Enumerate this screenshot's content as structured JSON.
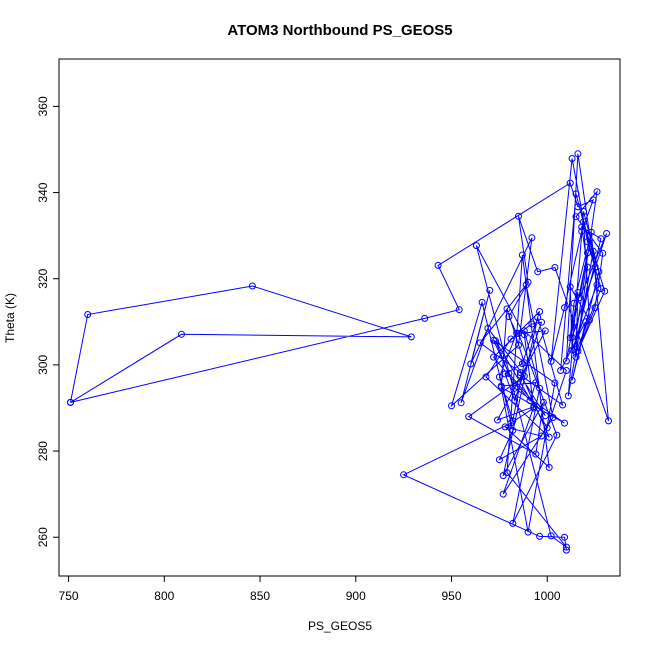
{
  "chart_data": {
    "type": "line",
    "title": "ATOM3 Northbound PS_GEOS5",
    "xlabel": "PS_GEOS5",
    "ylabel": "Theta (K)",
    "xlim": [
      745,
      1038
    ],
    "ylim": [
      251,
      371
    ],
    "xticks": [
      750,
      800,
      850,
      900,
      950,
      1000
    ],
    "yticks": [
      260,
      280,
      300,
      320,
      340,
      360
    ],
    "grid": false,
    "legend": "none",
    "color": "#0000ff",
    "marker": "open-circle",
    "series": [
      {
        "x": [
          751,
          760,
          846,
          929,
          809,
          751,
          936,
          954,
          943,
          1012,
          1016,
          1024,
          1018,
          1009,
          1002,
          1013,
          1021,
          1028,
          1015,
          1024,
          1011,
          1019,
          1027,
          1013,
          1020,
          1007,
          1015,
          1025,
          1013,
          1031,
          1017,
          1021,
          1010,
          1016,
          1026,
          1013,
          1012,
          1022,
          1019,
          1030,
          1016,
          1025,
          1029,
          1015,
          1026,
          1014,
          1028,
          1018,
          1021,
          1015,
          1016,
          1012,
          1014,
          1023,
          1032,
          1004,
          995,
          985,
          990,
          980,
          984,
          975,
          982,
          988,
          979,
          976,
          994,
          991,
          972,
          996,
          987,
          978,
          983,
          997,
          992,
          981,
          968,
          1001,
          986,
          965,
          989,
          1003,
          977,
          993,
          974,
          999,
          985,
          1005,
          982,
          996,
          988,
          1010,
          1000,
          973,
          983,
          1009,
          976,
          990,
          1004,
          972,
          980,
          999,
          986,
          1008,
          995,
          977,
          998,
          994,
          959,
          988,
          969,
          955,
          970,
          960,
          992,
          985,
          950,
          966,
          982,
          975,
          997,
          978,
          1001,
          987,
          979,
          1010,
          1002,
          963,
          988,
          993,
          981,
          925,
          996,
          1009,
          1010
        ],
        "y": [
          291.3,
          311.7,
          318.3,
          306.5,
          307.1,
          291.3,
          310.8,
          312.8,
          323.1,
          342.2,
          336.7,
          338.3,
          331.0,
          313.3,
          300.8,
          347.9,
          328.6,
          317.7,
          303.0,
          326.4,
          292.8,
          335.6,
          321.6,
          296.4,
          310.0,
          298.7,
          339.7,
          322.7,
          306.4,
          330.5,
          315.6,
          326.0,
          300.9,
          349.0,
          318.6,
          303.4,
          318.1,
          310.4,
          333.2,
          317.1,
          303.2,
          313.3,
          325.9,
          334.4,
          340.2,
          303.6,
          329.3,
          332.0,
          322.7,
          301.8,
          316.8,
          306.3,
          314.3,
          330.8,
          287.0,
          322.6,
          321.6,
          334.5,
          319.2,
          311.2,
          307.3,
          297.2,
          287.0,
          300.5,
          313.0,
          295.1,
          295.9,
          291.7,
          301.8,
          312.4,
          300.3,
          297.9,
          291.8,
          309.9,
          309.5,
          306.0,
          297.2,
          283.2,
          298.2,
          305.1,
          318.6,
          287.8,
          270.0,
          290.3,
          287.2,
          307.9,
          307.3,
          283.7,
          263.2,
          294.6,
          307.9,
          298.7,
          285.4,
          305.6,
          294.6,
          286.5,
          294.8,
          261.2,
          295.8,
          305.7,
          298.0,
          288.2,
          297.6,
          290.7,
          311.0,
          274.3,
          291.3,
          279.3,
          288.0,
          297.4,
          308.5,
          291.2,
          317.3,
          300.2,
          329.5,
          304.6,
          290.5,
          314.5,
          284.8,
          278.0,
          283.5,
          285.6,
          276.2,
          325.5,
          275.0,
          257.7,
          260.3,
          327.7,
          307.0,
          290.0,
          286.5,
          274.5,
          260.2,
          260.0,
          257.0
        ]
      }
    ]
  }
}
